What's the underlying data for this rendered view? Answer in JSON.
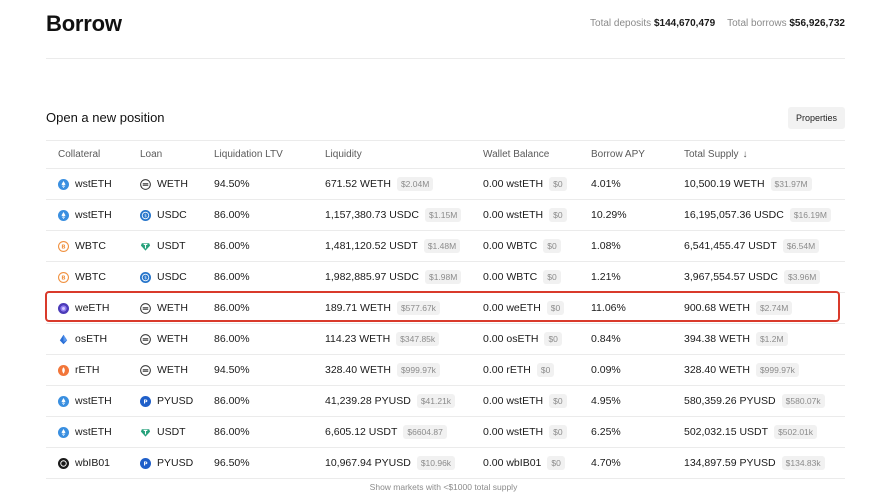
{
  "page": {
    "title": "Borrow",
    "total_deposits_label": "Total deposits",
    "total_deposits_value": "$144,670,479",
    "total_borrows_label": "Total borrows",
    "total_borrows_value": "$56,926,732"
  },
  "section": {
    "title": "Open a new position",
    "properties_label": "Properties"
  },
  "table": {
    "headers": [
      "Collateral",
      "Loan",
      "Liquidation LTV",
      "Liquidity",
      "Wallet Balance",
      "Borrow APY",
      "Total Supply"
    ],
    "sort_arrow": "↓",
    "rows": [
      {
        "collateral": "wstETH",
        "collateral_icon": "wsteth-icon",
        "loan": "WETH",
        "loan_icon": "weth-icon",
        "ltv": "94.50%",
        "liquidity": "671.52 WETH",
        "liquidity_usd": "$2.04M",
        "wallet": "0.00 wstETH",
        "wallet_usd": "$0",
        "apy": "4.01%",
        "supply": "10,500.19 WETH",
        "supply_usd": "$31.97M"
      },
      {
        "collateral": "wstETH",
        "collateral_icon": "wsteth-icon",
        "loan": "USDC",
        "loan_icon": "usdc-icon",
        "ltv": "86.00%",
        "liquidity": "1,157,380.73 USDC",
        "liquidity_usd": "$1.15M",
        "wallet": "0.00 wstETH",
        "wallet_usd": "$0",
        "apy": "10.29%",
        "supply": "16,195,057.36 USDC",
        "supply_usd": "$16.19M"
      },
      {
        "collateral": "WBTC",
        "collateral_icon": "wbtc-icon",
        "loan": "USDT",
        "loan_icon": "usdt-icon",
        "ltv": "86.00%",
        "liquidity": "1,481,120.52 USDT",
        "liquidity_usd": "$1.48M",
        "wallet": "0.00 WBTC",
        "wallet_usd": "$0",
        "apy": "1.08%",
        "supply": "6,541,455.47 USDT",
        "supply_usd": "$6.54M"
      },
      {
        "collateral": "WBTC",
        "collateral_icon": "wbtc-icon",
        "loan": "USDC",
        "loan_icon": "usdc-icon",
        "ltv": "86.00%",
        "liquidity": "1,982,885.97 USDC",
        "liquidity_usd": "$1.98M",
        "wallet": "0.00 WBTC",
        "wallet_usd": "$0",
        "apy": "1.21%",
        "supply": "3,967,554.57 USDC",
        "supply_usd": "$3.96M"
      },
      {
        "collateral": "weETH",
        "collateral_icon": "weeth-icon",
        "loan": "WETH",
        "loan_icon": "weth-icon",
        "ltv": "86.00%",
        "liquidity": "189.71 WETH",
        "liquidity_usd": "$577.67k",
        "wallet": "0.00 weETH",
        "wallet_usd": "$0",
        "apy": "11.06%",
        "supply": "900.68 WETH",
        "supply_usd": "$2.74M"
      },
      {
        "collateral": "osETH",
        "collateral_icon": "oseth-icon",
        "loan": "WETH",
        "loan_icon": "weth-icon",
        "ltv": "86.00%",
        "liquidity": "114.23 WETH",
        "liquidity_usd": "$347.85k",
        "wallet": "0.00 osETH",
        "wallet_usd": "$0",
        "apy": "0.84%",
        "supply": "394.38 WETH",
        "supply_usd": "$1.2M"
      },
      {
        "collateral": "rETH",
        "collateral_icon": "reth-icon",
        "loan": "WETH",
        "loan_icon": "weth-icon",
        "ltv": "94.50%",
        "liquidity": "328.40 WETH",
        "liquidity_usd": "$999.97k",
        "wallet": "0.00 rETH",
        "wallet_usd": "$0",
        "apy": "0.09%",
        "supply": "328.40 WETH",
        "supply_usd": "$999.97k"
      },
      {
        "collateral": "wstETH",
        "collateral_icon": "wsteth-icon",
        "loan": "PYUSD",
        "loan_icon": "pyusd-icon",
        "ltv": "86.00%",
        "liquidity": "41,239.28 PYUSD",
        "liquidity_usd": "$41.21k",
        "wallet": "0.00 wstETH",
        "wallet_usd": "$0",
        "apy": "4.95%",
        "supply": "580,359.26 PYUSD",
        "supply_usd": "$580.07k"
      },
      {
        "collateral": "wstETH",
        "collateral_icon": "wsteth-icon",
        "loan": "USDT",
        "loan_icon": "usdt-icon",
        "ltv": "86.00%",
        "liquidity": "6,605.12 USDT",
        "liquidity_usd": "$6604.87",
        "wallet": "0.00 wstETH",
        "wallet_usd": "$0",
        "apy": "6.25%",
        "supply": "502,032.15 USDT",
        "supply_usd": "$502.01k"
      },
      {
        "collateral": "wbIB01",
        "collateral_icon": "wbib01-icon",
        "loan": "PYUSD",
        "loan_icon": "pyusd-icon",
        "ltv": "96.50%",
        "liquidity": "10,967.94 PYUSD",
        "liquidity_usd": "$10.96k",
        "wallet": "0.00 wbIB01",
        "wallet_usd": "$0",
        "apy": "4.70%",
        "supply": "134,897.59 PYUSD",
        "supply_usd": "$134.83k"
      }
    ]
  },
  "footer": {
    "show_markets_label": "Show markets with <$1000 total supply"
  },
  "colors": {
    "highlight": "#d93a2b",
    "wsteth": "#3a8fe0",
    "wbtc": "#f09242",
    "weeth": "#4b3bb8",
    "oseth": "#2a6fd6",
    "reth": "#f2763a",
    "usdc": "#2775ca",
    "usdt": "#26a17b",
    "pyusd": "#1f5fc9",
    "wbib01": "#1b1b1b"
  }
}
